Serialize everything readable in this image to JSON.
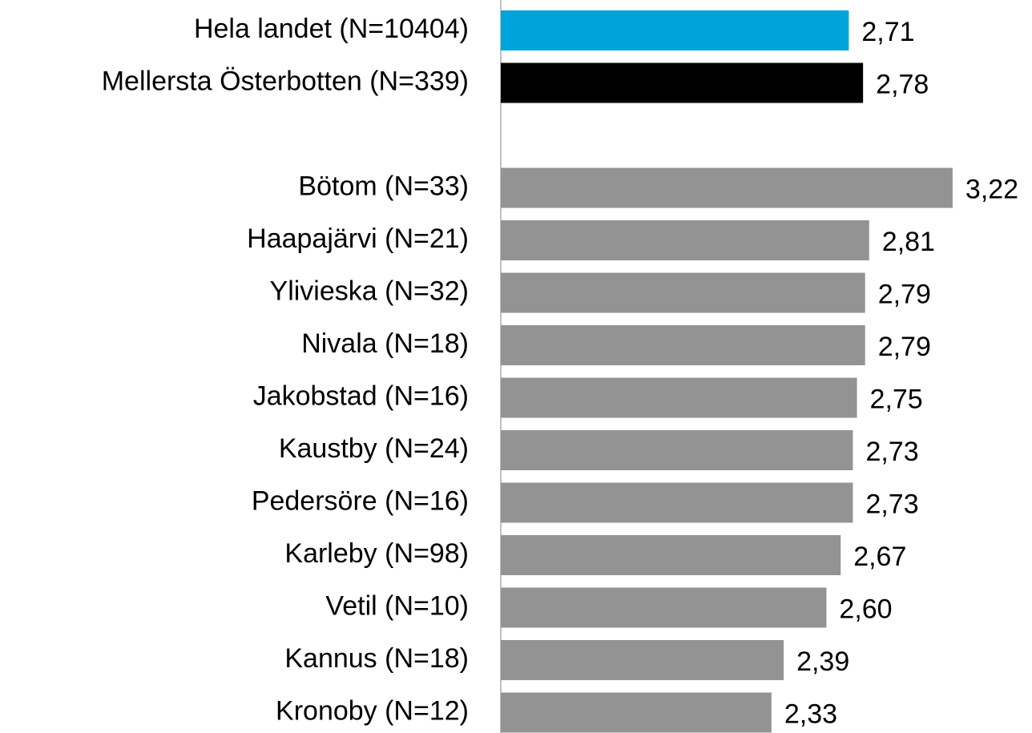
{
  "chart_data": {
    "type": "bar",
    "orientation": "horizontal",
    "categories": [
      "Hela landet (N=10404)",
      "Mellersta Österbotten (N=339)",
      null,
      "Bötom (N=33)",
      "Haapajärvi (N=21)",
      "Ylivieska (N=32)",
      "Nivala (N=18)",
      "Jakobstad (N=16)",
      "Kaustby (N=24)",
      "Pedersöre (N=16)",
      "Karleby (N=98)",
      "Vetil (N=10)",
      "Kannus (N=18)",
      "Kronoby (N=12)"
    ],
    "values": [
      2.71,
      2.78,
      null,
      3.22,
      2.81,
      2.79,
      2.79,
      2.75,
      2.73,
      2.73,
      2.67,
      2.6,
      2.39,
      2.33
    ],
    "value_labels": [
      "2,71",
      "2,78",
      null,
      "3,22",
      "2,81",
      "2,79",
      "2,79",
      "2,75",
      "2,73",
      "2,73",
      "2,67",
      "2,60",
      "2,39",
      "2,33"
    ],
    "colors": [
      "#00a3da",
      "#000000",
      null,
      "#939393",
      "#939393",
      "#939393",
      "#939393",
      "#939393",
      "#939393",
      "#939393",
      "#939393",
      "#939393",
      "#939393",
      "#939393"
    ],
    "xlim": [
      1,
      3.61
    ]
  }
}
